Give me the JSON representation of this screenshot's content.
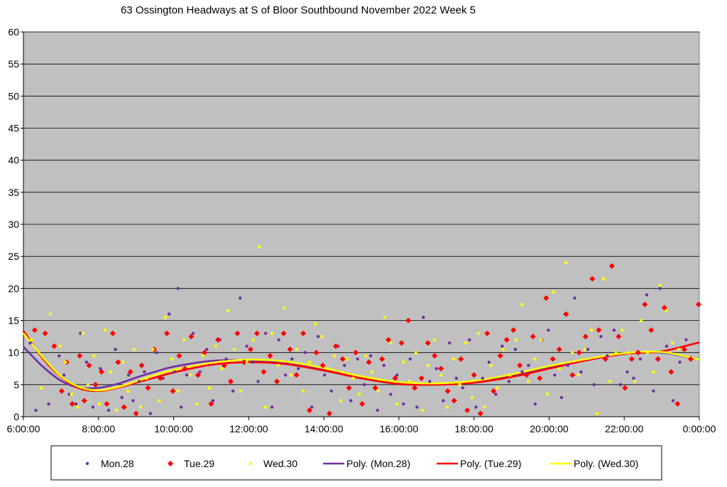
{
  "chart_data": {
    "type": "scatter",
    "title": "63 Ossington Headways at S of Bloor Southbound November 2022  Week 5",
    "xlabel": "",
    "ylabel": "",
    "x_range_hours": [
      6,
      24
    ],
    "x_ticks": [
      "6:00:00",
      "8:00:00",
      "10:00:00",
      "12:00:00",
      "14:00:00",
      "16:00:00",
      "18:00:00",
      "20:00:00",
      "22:00:00",
      "0:00:00"
    ],
    "y_range": [
      0,
      60
    ],
    "y_ticks": [
      0,
      5,
      10,
      15,
      20,
      25,
      30,
      35,
      40,
      45,
      50,
      55,
      60
    ],
    "grid": "horizontal",
    "plot_background": "#c0c0c0",
    "legend_position": "bottom",
    "series": [
      {
        "name": "Mon.28",
        "marker": "circle",
        "color": "#7030a0",
        "x_hours": [
          6.18,
          6.33,
          6.67,
          6.95,
          7.08,
          7.22,
          7.4,
          7.52,
          7.68,
          7.85,
          8.05,
          8.27,
          8.45,
          8.62,
          8.8,
          8.92,
          9.08,
          9.22,
          9.38,
          9.55,
          9.72,
          9.88,
          10.02,
          10.12,
          10.2,
          10.35,
          10.52,
          10.7,
          10.88,
          11.05,
          11.23,
          11.4,
          11.58,
          11.77,
          11.95,
          12.1,
          12.25,
          12.45,
          12.62,
          12.8,
          12.98,
          13.15,
          13.32,
          13.5,
          13.68,
          13.85,
          14.02,
          14.2,
          14.38,
          14.55,
          14.72,
          14.9,
          15.08,
          15.25,
          15.43,
          15.6,
          15.78,
          15.95,
          16.12,
          16.3,
          16.48,
          16.65,
          16.82,
          17.0,
          17.18,
          17.35,
          17.53,
          17.7,
          17.88,
          18.05,
          18.23,
          18.4,
          18.58,
          18.75,
          18.93,
          19.1,
          19.28,
          19.45,
          19.63,
          19.8,
          19.98,
          20.15,
          20.33,
          20.5,
          20.68,
          20.85,
          21.03,
          21.2,
          21.38,
          21.55,
          21.73,
          21.9,
          22.08,
          22.25,
          22.43,
          22.6,
          22.78,
          22.95,
          23.13,
          23.3,
          23.48,
          23.65
        ],
        "y": [
          11.5,
          1.0,
          2.0,
          9.5,
          6.5,
          3.5,
          2.0,
          13.0,
          8.5,
          1.5,
          7.5,
          1.0,
          10.5,
          3.0,
          6.5,
          2.5,
          5.5,
          7.0,
          0.5,
          10.0,
          6.0,
          16.0,
          7.0,
          20.0,
          1.5,
          6.5,
          13.0,
          7.0,
          10.5,
          2.5,
          12.0,
          9.0,
          4.0,
          18.5,
          11.0,
          8.5,
          5.5,
          13.0,
          1.5,
          12.0,
          6.5,
          9.0,
          7.5,
          10.0,
          1.5,
          12.5,
          6.5,
          4.0,
          11.0,
          8.0,
          2.5,
          9.0,
          5.0,
          9.5,
          1.0,
          8.0,
          3.5,
          6.5,
          2.0,
          9.0,
          1.5,
          15.5,
          5.5,
          7.5,
          2.5,
          11.5,
          6.0,
          4.5,
          12.0,
          1.5,
          6.0,
          8.5,
          3.5,
          11.0,
          5.5,
          10.5,
          7.0,
          8.0,
          2.0,
          12.0,
          13.5,
          6.5,
          3.0,
          8.0,
          18.5,
          7.0,
          10.5,
          5.0,
          12.5,
          9.5,
          13.5,
          5.0,
          7.0,
          6.0,
          9.0,
          19.0,
          4.0,
          20.0,
          11.0,
          2.5,
          8.5,
          12.0
        ]
      },
      {
        "name": "Tue.29",
        "marker": "diamond",
        "color": "#ff0000",
        "x_hours": [
          6.3,
          6.58,
          6.82,
          7.02,
          7.15,
          7.3,
          7.5,
          7.62,
          7.75,
          7.92,
          8.08,
          8.22,
          8.38,
          8.52,
          8.68,
          8.85,
          9.0,
          9.15,
          9.32,
          9.48,
          9.65,
          9.82,
          9.98,
          10.15,
          10.3,
          10.47,
          10.65,
          10.82,
          11.0,
          11.18,
          11.35,
          11.52,
          11.7,
          11.88,
          12.05,
          12.22,
          12.4,
          12.57,
          12.75,
          12.93,
          13.1,
          13.27,
          13.45,
          13.62,
          13.8,
          13.97,
          14.15,
          14.32,
          14.5,
          14.67,
          14.85,
          15.02,
          15.2,
          15.37,
          15.55,
          15.72,
          15.9,
          16.07,
          16.25,
          16.42,
          16.6,
          16.77,
          16.95,
          17.12,
          17.3,
          17.47,
          17.65,
          17.82,
          18.0,
          18.17,
          18.35,
          18.52,
          18.7,
          18.87,
          19.05,
          19.22,
          19.4,
          19.57,
          19.75,
          19.92,
          20.1,
          20.27,
          20.45,
          20.62,
          20.8,
          20.97,
          21.15,
          21.32,
          21.5,
          21.67,
          21.85,
          22.02,
          22.2,
          22.37,
          22.55,
          22.72,
          22.9,
          23.07,
          23.25,
          23.42,
          23.6,
          23.77,
          23.98
        ],
        "y": [
          13.5,
          13.0,
          11.0,
          4.0,
          8.5,
          2.0,
          9.5,
          2.5,
          8.0,
          5.0,
          7.0,
          2.0,
          13.0,
          8.5,
          1.5,
          7.0,
          0.5,
          8.0,
          4.5,
          10.5,
          6.0,
          13.0,
          4.0,
          9.5,
          7.5,
          12.5,
          6.5,
          10.0,
          2.0,
          12.0,
          8.0,
          5.5,
          13.0,
          8.5,
          10.5,
          13.0,
          7.0,
          9.5,
          5.5,
          13.0,
          10.5,
          6.5,
          13.0,
          1.0,
          10.0,
          8.0,
          0.5,
          11.0,
          9.0,
          4.5,
          10.0,
          2.0,
          8.5,
          4.5,
          9.0,
          12.0,
          6.0,
          11.5,
          15.0,
          4.5,
          6.0,
          11.5,
          9.5,
          7.5,
          4.0,
          2.5,
          9.0,
          1.0,
          6.5,
          0.5,
          13.0,
          4.0,
          9.5,
          12.0,
          13.5,
          8.0,
          6.5,
          12.5,
          6.0,
          18.5,
          9.0,
          10.5,
          16.0,
          6.5,
          10.0,
          12.5,
          21.5,
          13.5,
          9.0,
          23.5,
          12.5,
          4.5,
          9.0,
          10.0,
          17.5,
          13.5,
          9.0,
          17.0,
          7.0,
          2.0,
          10.5,
          9.0,
          17.5
        ]
      },
      {
        "name": "Wed.30",
        "marker": "square",
        "color": "#ffff00",
        "x_hours": [
          6.22,
          6.48,
          6.72,
          6.98,
          7.12,
          7.28,
          7.45,
          7.58,
          7.72,
          7.88,
          8.02,
          8.18,
          8.32,
          8.48,
          8.65,
          8.78,
          8.95,
          9.12,
          9.28,
          9.45,
          9.62,
          9.78,
          9.95,
          10.12,
          10.28,
          10.45,
          10.62,
          10.78,
          10.95,
          11.12,
          11.28,
          11.45,
          11.62,
          11.78,
          11.95,
          12.12,
          12.28,
          12.45,
          12.62,
          12.78,
          12.95,
          13.12,
          13.28,
          13.45,
          13.62,
          13.78,
          13.95,
          14.12,
          14.28,
          14.45,
          14.62,
          14.78,
          14.95,
          15.12,
          15.28,
          15.45,
          15.62,
          15.78,
          15.95,
          16.12,
          16.28,
          16.45,
          16.62,
          16.78,
          16.95,
          17.12,
          17.28,
          17.45,
          17.62,
          17.78,
          17.95,
          18.12,
          18.28,
          18.45,
          18.62,
          18.78,
          18.95,
          19.12,
          19.28,
          19.45,
          19.62,
          19.78,
          19.95,
          20.12,
          20.28,
          20.45,
          20.62,
          20.78,
          20.95,
          21.12,
          21.28,
          21.45,
          21.62,
          21.78,
          21.95,
          22.12,
          22.28,
          22.45,
          22.62,
          22.78,
          22.95,
          23.12,
          23.28,
          23.45
        ],
        "y": [
          12.0,
          4.5,
          16.0,
          11.0,
          8.5,
          3.5,
          1.5,
          13.0,
          5.0,
          9.5,
          2.0,
          13.5,
          7.0,
          1.0,
          8.5,
          4.0,
          10.5,
          1.5,
          6.0,
          10.5,
          2.5,
          15.5,
          9.0,
          4.0,
          12.0,
          6.5,
          2.0,
          9.5,
          4.5,
          11.0,
          7.5,
          16.5,
          10.5,
          4.0,
          8.5,
          12.0,
          26.5,
          1.5,
          13.0,
          8.0,
          17.0,
          6.5,
          10.5,
          4.0,
          8.5,
          14.5,
          12.5,
          7.5,
          9.5,
          2.5,
          9.0,
          6.0,
          3.5,
          9.5,
          7.0,
          4.0,
          15.5,
          11.5,
          2.0,
          8.5,
          5.5,
          10.0,
          1.0,
          8.0,
          12.0,
          6.5,
          1.5,
          9.0,
          5.0,
          11.5,
          3.0,
          13.0,
          1.5,
          8.0,
          4.5,
          10.5,
          6.5,
          12.0,
          17.5,
          5.5,
          9.0,
          12.0,
          3.5,
          19.5,
          7.5,
          24.0,
          10.0,
          6.5,
          10.5,
          13.5,
          0.5,
          21.5,
          5.5,
          10.0,
          13.5,
          10.0,
          5.5,
          15.0,
          10.0,
          7.0,
          20.5,
          16.5,
          11.5,
          10.5
        ]
      }
    ],
    "trendlines": [
      {
        "name": "Poly. (Mon.28)",
        "color": "#7030a0",
        "of": "Mon.28",
        "x_hours": [
          6,
          6.5,
          7,
          7.5,
          8,
          8.5,
          9,
          9.5,
          10,
          11,
          12,
          13,
          14,
          15,
          16,
          17,
          18,
          19,
          20,
          21,
          22,
          23,
          24
        ],
        "y": [
          10.9,
          7.9,
          5.6,
          4.5,
          4.5,
          5.1,
          6.1,
          7.0,
          7.8,
          8.7,
          8.8,
          8.3,
          7.3,
          6.0,
          5.2,
          5.0,
          5.4,
          6.4,
          7.7,
          8.8,
          9.8,
          10.0,
          8.9
        ]
      },
      {
        "name": "Poly. (Tue.29)",
        "color": "#ff0000",
        "of": "Tue.29",
        "x_hours": [
          6,
          6.5,
          7,
          7.5,
          8,
          8.5,
          9,
          9.5,
          10,
          11,
          12,
          13,
          14,
          15,
          16,
          17,
          18,
          19,
          20,
          21,
          22,
          23,
          24
        ],
        "y": [
          13.4,
          9.2,
          6.2,
          4.4,
          4.0,
          4.5,
          5.3,
          6.1,
          6.9,
          8.1,
          8.5,
          8.2,
          7.2,
          6.0,
          5.1,
          5.0,
          5.3,
          6.2,
          7.5,
          8.8,
          9.8,
          10.2,
          11.6
        ]
      },
      {
        "name": "Poly. (Wed.30)",
        "color": "#ffff00",
        "of": "Wed.30",
        "x_hours": [
          6,
          6.5,
          7,
          7.5,
          8,
          8.5,
          9,
          9.5,
          10,
          11,
          12,
          13,
          14,
          15,
          16,
          17,
          18,
          19,
          20,
          21,
          22,
          23,
          24
        ],
        "y": [
          13.0,
          9.4,
          6.3,
          4.6,
          4.1,
          4.6,
          5.5,
          6.5,
          7.3,
          8.4,
          8.9,
          8.6,
          7.6,
          6.3,
          5.4,
          5.2,
          5.6,
          6.6,
          7.9,
          9.0,
          9.9,
          10.1,
          8.9
        ]
      }
    ],
    "legend": [
      "Mon.28",
      "Tue.29",
      "Wed.30",
      "Poly. (Mon.28)",
      "Poly. (Tue.29)",
      "Poly. (Wed.30)"
    ]
  }
}
